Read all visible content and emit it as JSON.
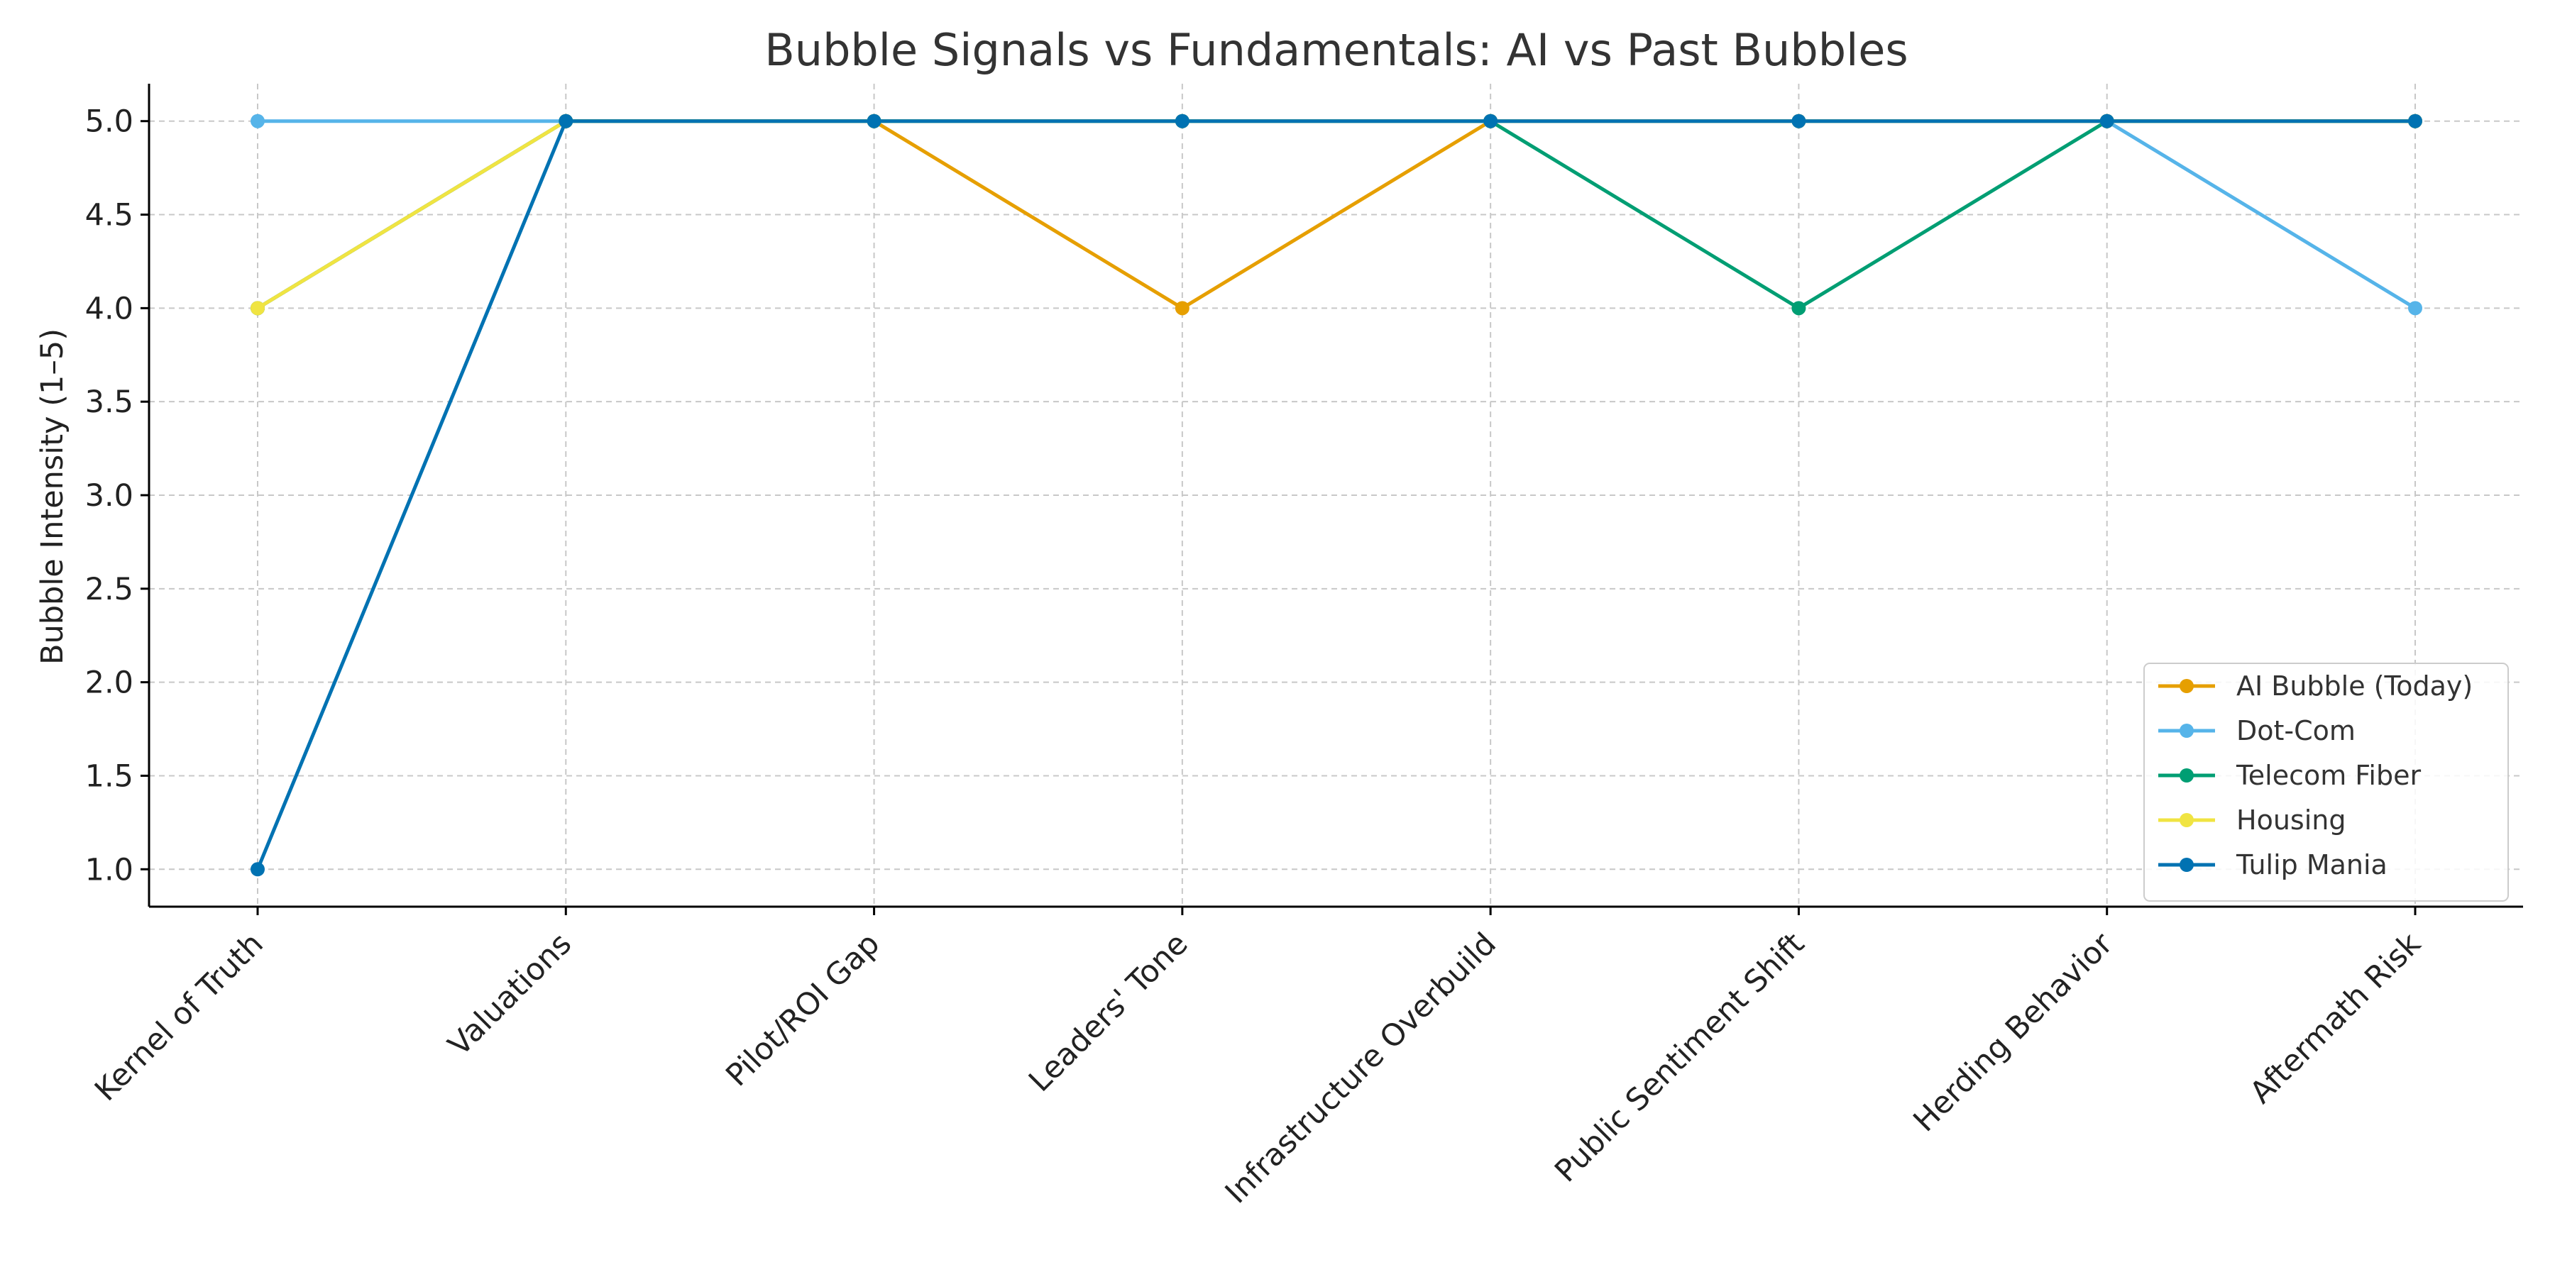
{
  "chart_data": {
    "type": "line",
    "title": "Bubble Signals vs Fundamentals: AI vs Past Bubbles",
    "xlabel": "",
    "ylabel": "Bubble Intensity (1–5)",
    "categories": [
      "Kernel of Truth",
      "Valuations",
      "Pilot/ROI Gap",
      "Leaders' Tone",
      "Infrastructure Overbuild",
      "Public Sentiment Shift",
      "Herding Behavior",
      "Aftermath Risk"
    ],
    "yticks": [
      "1.0",
      "1.5",
      "2.0",
      "2.5",
      "3.0",
      "3.5",
      "4.0",
      "4.5",
      "5.0"
    ],
    "ylim": [
      0.8,
      5.2
    ],
    "grid": true,
    "legend_position": "lower-right",
    "series": [
      {
        "name": "AI Bubble (Today)",
        "color": "#E69F00",
        "values": [
          4,
          5,
          5,
          4,
          5,
          5,
          5,
          5
        ]
      },
      {
        "name": "Dot-Com",
        "color": "#56B4E9",
        "values": [
          5,
          5,
          5,
          5,
          5,
          5,
          5,
          4
        ]
      },
      {
        "name": "Telecom Fiber",
        "color": "#009E73",
        "values": [
          4,
          5,
          5,
          5,
          5,
          4,
          5,
          5
        ]
      },
      {
        "name": "Housing",
        "color": "#F0E442",
        "values": [
          4,
          5,
          5,
          5,
          5,
          5,
          5,
          5
        ]
      },
      {
        "name": "Tulip Mania",
        "color": "#0072B2",
        "values": [
          1,
          5,
          5,
          5,
          5,
          5,
          5,
          5
        ]
      }
    ]
  }
}
